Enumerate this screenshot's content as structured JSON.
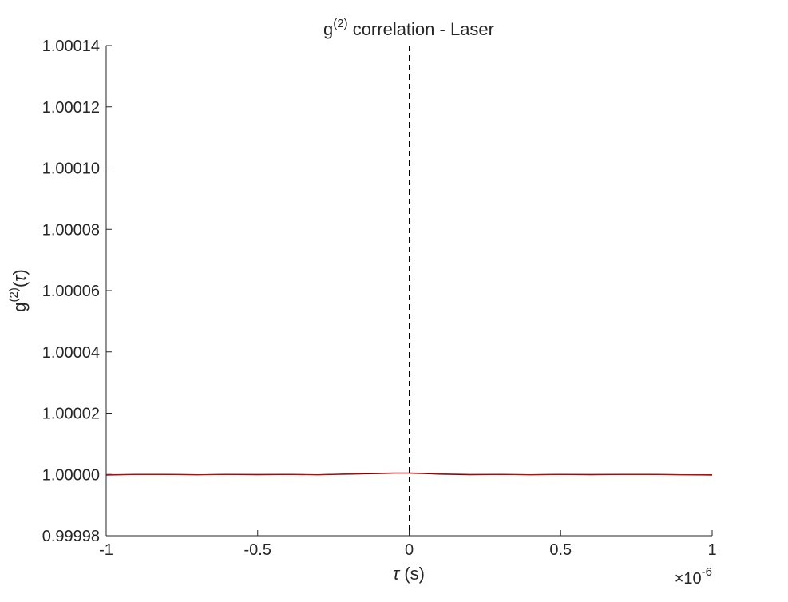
{
  "chart_data": {
    "type": "line",
    "title": {
      "base": "g",
      "sup": "(2)",
      "rest": " correlation - Laser"
    },
    "xlabel": {
      "symbol": "τ",
      "rest": " (s)"
    },
    "ylabel": {
      "base": "g",
      "sup": "(2)",
      "rest_open": "(",
      "symbol": "τ",
      "rest_close": ")"
    },
    "xlim": [
      -1,
      1
    ],
    "ylim": [
      0.99998,
      1.00014
    ],
    "x_exponent": {
      "mult": "×",
      "base": "10",
      "sup": "-6"
    },
    "xticks": [
      {
        "value": -1,
        "label": "-1"
      },
      {
        "value": -0.5,
        "label": "-0.5"
      },
      {
        "value": 0,
        "label": "0"
      },
      {
        "value": 0.5,
        "label": "0.5"
      },
      {
        "value": 1,
        "label": "1"
      }
    ],
    "yticks": [
      {
        "value": 0.99998,
        "label": "0.99998"
      },
      {
        "value": 1.0,
        "label": "1.00000"
      },
      {
        "value": 1.00002,
        "label": "1.00002"
      },
      {
        "value": 1.00004,
        "label": "1.00004"
      },
      {
        "value": 1.00006,
        "label": "1.00006"
      },
      {
        "value": 1.00008,
        "label": "1.00008"
      },
      {
        "value": 1.0001,
        "label": "1.00010"
      },
      {
        "value": 1.00012,
        "label": "1.00012"
      },
      {
        "value": 1.00014,
        "label": "1.00014"
      }
    ],
    "grid": false,
    "vertical_reference_line": {
      "x": 0,
      "style": "dashed",
      "color": "#000000"
    },
    "series": [
      {
        "color": "#000000",
        "x": [
          -1,
          -0.9,
          -0.8,
          -0.7,
          -0.6,
          -0.5,
          -0.4,
          -0.3,
          -0.2,
          -0.1,
          -0.05,
          0,
          0.05,
          0.1,
          0.2,
          0.3,
          0.4,
          0.5,
          0.6,
          0.7,
          0.8,
          0.9,
          1
        ],
        "y": [
          0.9999998,
          1.0,
          1.0,
          0.9999999,
          1.0,
          0.9999999,
          1.0,
          0.9999999,
          1.0000001,
          1.0000003,
          1.0000004,
          1.0000004,
          1.0000003,
          1.0000001,
          0.9999999,
          1.0,
          0.9999999,
          1.0,
          0.9999999,
          1.0,
          1.0,
          0.9999999,
          0.9999998
        ]
      },
      {
        "color": "#d40000",
        "x": [
          -1,
          -0.9,
          -0.8,
          -0.7,
          -0.6,
          -0.5,
          -0.4,
          -0.3,
          -0.2,
          -0.1,
          -0.05,
          0,
          0.05,
          0.1,
          0.2,
          0.3,
          0.4,
          0.5,
          0.6,
          0.7,
          0.8,
          0.9,
          1
        ],
        "y": [
          0.9999999,
          1.0,
          1.0,
          0.9999999,
          1.0,
          1.0,
          1.0,
          0.9999999,
          1.0000002,
          1.0000004,
          1.0000005,
          1.0000005,
          1.0000004,
          1.0000002,
          1.0,
          1.0,
          0.9999999,
          1.0,
          1.0,
          1.0,
          1.0,
          0.9999999,
          0.9999999
        ]
      }
    ]
  }
}
